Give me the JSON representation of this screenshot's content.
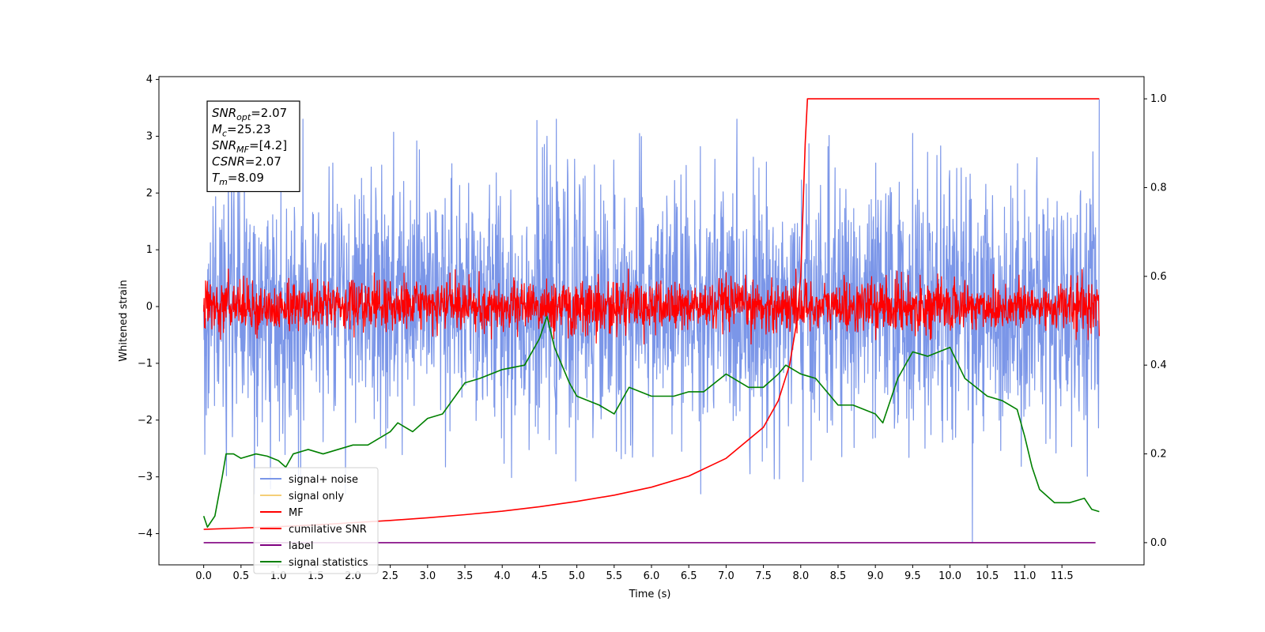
{
  "chart_data": {
    "type": "line",
    "title": "",
    "xlabel": "Time (s)",
    "ylabel": "Whitened strain",
    "xlim": [
      -0.6,
      12.6
    ],
    "ylim": [
      -4.55,
      4.05
    ],
    "y2lim": [
      -0.05,
      1.05
    ],
    "xticks": [
      "0.0",
      "0.5",
      "1.0",
      "1.5",
      "2.0",
      "2.5",
      "3.0",
      "3.5",
      "4.0",
      "4.5",
      "5.0",
      "5.5",
      "6.0",
      "6.5",
      "7.0",
      "7.5",
      "8.0",
      "8.5",
      "9.0",
      "9.5",
      "10.0",
      "10.5",
      "11.0",
      "11.5"
    ],
    "yticks": [
      "4",
      "3",
      "2",
      "1",
      "0",
      "−1",
      "−2",
      "−3",
      "−4"
    ],
    "y2ticks": [
      "1.0",
      "0.8",
      "0.6",
      "0.4",
      "0.2",
      "0.0"
    ],
    "legend_position": "lower-left",
    "annotation": {
      "lines": [
        {
          "base": "SNR",
          "sub": "opt",
          "text": "=2.07"
        },
        {
          "base": "M",
          "sub": "c",
          "text": "=25.23"
        },
        {
          "base": "SNR",
          "sub": "MF",
          "text": "=[4.2]"
        },
        {
          "base": "CSNR",
          "sub": "",
          "text": "=2.07"
        },
        {
          "base": "T",
          "sub": "m",
          "text": "=8.09"
        }
      ]
    },
    "series": [
      {
        "name": "signal+ noise",
        "color": "#7b96e8",
        "axis": "left",
        "style": "noise",
        "amplitude": 1.1,
        "spikes": [
          [
            10.3,
            -4.15
          ],
          [
            12.0,
            3.65
          ],
          [
            4.6,
            3.0
          ],
          [
            9.5,
            3.05
          ]
        ]
      },
      {
        "name": "signal only",
        "color": "#f5cf77",
        "axis": "left",
        "values": []
      },
      {
        "name": "MF",
        "color": "#ff0000",
        "axis": "left",
        "style": "noise",
        "amplitude": 0.22
      },
      {
        "name": "cumilative SNR",
        "color": "#ff0000",
        "axis": "right",
        "x": [
          0.0,
          0.5,
          1.0,
          1.5,
          2.0,
          2.5,
          3.0,
          3.5,
          4.0,
          4.5,
          5.0,
          5.5,
          6.0,
          6.5,
          7.0,
          7.5,
          7.7,
          7.85,
          7.95,
          8.0,
          8.03,
          8.06,
          8.09,
          8.5,
          9.0,
          9.5,
          10.0,
          10.5,
          11.0,
          11.5,
          12.0
        ],
        "values": [
          0.03,
          0.033,
          0.036,
          0.04,
          0.045,
          0.05,
          0.056,
          0.063,
          0.071,
          0.081,
          0.093,
          0.107,
          0.125,
          0.15,
          0.19,
          0.26,
          0.32,
          0.4,
          0.5,
          0.6,
          0.75,
          0.9,
          1.0,
          1.0,
          1.0,
          1.0,
          1.0,
          1.0,
          1.0,
          1.0,
          1.0
        ]
      },
      {
        "name": "label",
        "color": "#800080",
        "axis": "right",
        "x": [
          0.0,
          11.95
        ],
        "values": [
          0.0,
          0.0
        ]
      },
      {
        "name": "signal statistics",
        "color": "#008000",
        "axis": "right",
        "x": [
          0.0,
          0.05,
          0.15,
          0.25,
          0.3,
          0.4,
          0.5,
          0.7,
          0.85,
          1.0,
          1.1,
          1.2,
          1.4,
          1.6,
          1.8,
          2.0,
          2.2,
          2.5,
          2.6,
          2.8,
          3.0,
          3.2,
          3.5,
          3.7,
          4.0,
          4.3,
          4.5,
          4.6,
          4.7,
          4.9,
          5.0,
          5.3,
          5.5,
          5.7,
          6.0,
          6.3,
          6.5,
          6.7,
          7.0,
          7.3,
          7.5,
          7.7,
          7.8,
          8.0,
          8.2,
          8.5,
          8.7,
          9.0,
          9.1,
          9.3,
          9.5,
          9.7,
          10.0,
          10.2,
          10.5,
          10.7,
          10.9,
          11.0,
          11.1,
          11.2,
          11.4,
          11.6,
          11.8,
          11.9,
          12.0
        ],
        "values": [
          0.06,
          0.035,
          0.06,
          0.15,
          0.2,
          0.2,
          0.19,
          0.2,
          0.195,
          0.185,
          0.17,
          0.2,
          0.21,
          0.2,
          0.21,
          0.22,
          0.22,
          0.25,
          0.27,
          0.25,
          0.28,
          0.29,
          0.36,
          0.37,
          0.39,
          0.4,
          0.46,
          0.51,
          0.44,
          0.36,
          0.33,
          0.31,
          0.29,
          0.35,
          0.33,
          0.33,
          0.34,
          0.34,
          0.38,
          0.35,
          0.35,
          0.38,
          0.4,
          0.38,
          0.37,
          0.31,
          0.31,
          0.29,
          0.27,
          0.37,
          0.43,
          0.42,
          0.44,
          0.37,
          0.33,
          0.32,
          0.3,
          0.24,
          0.17,
          0.12,
          0.09,
          0.09,
          0.1,
          0.075,
          0.07
        ]
      }
    ]
  }
}
